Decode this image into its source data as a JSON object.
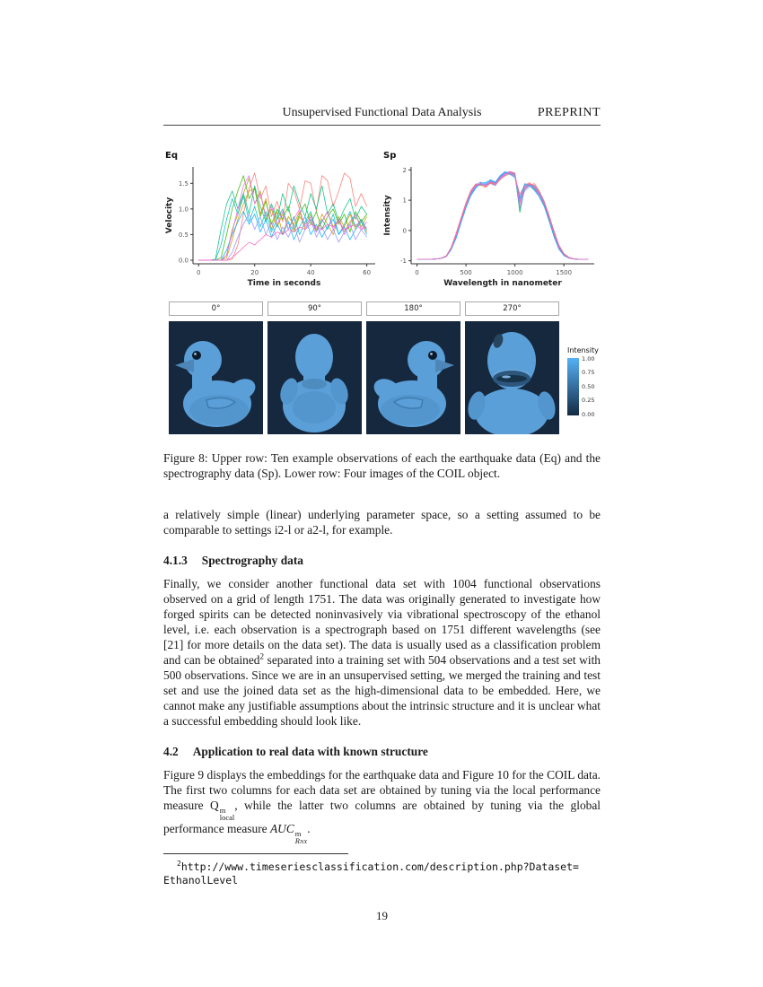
{
  "header": {
    "title": "Unsupervised Functional Data Analysis",
    "tag": "PREPRINT"
  },
  "page": {
    "number": "19"
  },
  "figure": {
    "caption": "Figure 8: Upper row: Ten example observations of each the earthquake data (Eq) and the spectrography data (Sp). Lower row: Four images of the COIL object."
  },
  "coil": {
    "labels": [
      "0°",
      "90°",
      "180°",
      "270°"
    ],
    "colorbar": {
      "title": "Intensity",
      "ticks": [
        "1.00",
        "0.75",
        "0.50",
        "0.25",
        "0.00"
      ],
      "top_color": "#56B1F7",
      "bottom_color": "#132B43"
    }
  },
  "chart_data": [
    {
      "type": "line",
      "title": "Eq",
      "xlabel": "Time in seconds",
      "ylabel": "Velocity",
      "xlim": [
        -2,
        63
      ],
      "ylim": [
        -0.07,
        1.82
      ],
      "x_start": 0,
      "x_step": 2,
      "x_ticks": [
        {
          "label": "0",
          "value": 0
        },
        {
          "label": "20",
          "value": 20
        },
        {
          "label": "40",
          "value": 40
        },
        {
          "label": "60",
          "value": 60
        }
      ],
      "y_ticks": [
        {
          "label": "0.0",
          "value": 0
        },
        {
          "label": "0.5",
          "value": 0.5
        },
        {
          "label": "1.0",
          "value": 1.0
        },
        {
          "label": "1.5",
          "value": 1.5
        }
      ],
      "grid": false,
      "legend": "none",
      "series": [
        {
          "name": "eq-1",
          "color": "#F8766D",
          "values": [
            0,
            0,
            0,
            0,
            0,
            0,
            0.02,
            0.3,
            0.9,
            1.4,
            1.7,
            1.2,
            1.45,
            0.85,
            1.15,
            0.75,
            1.5,
            1.35,
            1.0,
            1.55,
            1.5,
            0.95,
            1.65,
            1.55,
            1.05,
            1.35,
            1.7,
            1.6,
            1.05,
            1.3,
            1.05
          ]
        },
        {
          "name": "eq-2",
          "color": "#DB8E00",
          "values": [
            0,
            0,
            0,
            0,
            0,
            0.05,
            0.4,
            0.8,
            1.1,
            1.35,
            1.4,
            0.9,
            1.2,
            0.6,
            0.95,
            0.5,
            0.85,
            0.7,
            0.95,
            0.6,
            0.8,
            0.55,
            0.9,
            0.7,
            0.5,
            0.85,
            0.65,
            0.9,
            0.6,
            0.8,
            0.55
          ]
        },
        {
          "name": "eq-3",
          "color": "#A3A500",
          "values": [
            0,
            0,
            0,
            0,
            0,
            0.1,
            0.6,
            0.9,
            1.3,
            1.6,
            1.1,
            1.35,
            0.8,
            1.0,
            0.65,
            0.9,
            0.75,
            0.55,
            0.85,
            0.7,
            0.9,
            0.6,
            0.75,
            0.95,
            0.65,
            0.8,
            0.55,
            0.75,
            0.9,
            0.65,
            0.85
          ]
        },
        {
          "name": "eq-4",
          "color": "#39B600",
          "values": [
            0,
            0,
            0,
            0,
            0.05,
            0.5,
            1.0,
            1.35,
            1.65,
            1.2,
            1.4,
            0.85,
            1.15,
            0.7,
            1.0,
            0.8,
            1.05,
            0.6,
            0.9,
            1.1,
            0.7,
            0.95,
            0.6,
            0.85,
            1.0,
            0.7,
            0.9,
            0.55,
            0.95,
            0.75,
            0.9
          ]
        },
        {
          "name": "eq-5",
          "color": "#00BF7D",
          "values": [
            0,
            0,
            0,
            0.02,
            0.6,
            1.1,
            1.35,
            1.0,
            1.3,
            0.9,
            1.45,
            1.05,
            0.75,
            1.1,
            0.8,
            1.3,
            0.95,
            1.45,
            1.1,
            0.85,
            1.3,
            1.0,
            1.45,
            0.9,
            1.1,
            0.75,
            1.0,
            1.2,
            0.8,
            1.05,
            0.9
          ]
        },
        {
          "name": "eq-6",
          "color": "#00BFC4",
          "values": [
            0,
            0,
            0,
            0,
            0.3,
            0.8,
            1.2,
            0.9,
            1.25,
            0.75,
            1.05,
            0.65,
            0.95,
            0.55,
            0.8,
            1.0,
            0.6,
            0.85,
            0.5,
            0.75,
            0.95,
            0.55,
            0.8,
            0.6,
            0.9,
            0.5,
            0.7,
            0.95,
            0.65,
            0.8,
            0.6
          ]
        },
        {
          "name": "eq-7",
          "color": "#00B0F6",
          "values": [
            0,
            0,
            0,
            0,
            0,
            0.2,
            0.5,
            0.75,
            0.95,
            0.7,
            0.9,
            0.55,
            0.8,
            0.45,
            0.7,
            0.5,
            0.75,
            0.4,
            0.65,
            0.85,
            0.5,
            0.7,
            0.45,
            0.65,
            0.8,
            0.5,
            0.65,
            0.4,
            0.6,
            0.75,
            0.5
          ]
        },
        {
          "name": "eq-8",
          "color": "#9590FF",
          "values": [
            0,
            0,
            0,
            0,
            0,
            0,
            0.15,
            0.45,
            0.7,
            0.9,
            0.6,
            0.85,
            0.5,
            0.75,
            0.4,
            0.65,
            0.45,
            0.7,
            0.35,
            0.6,
            0.8,
            0.45,
            0.65,
            0.4,
            0.6,
            0.35,
            0.55,
            0.7,
            0.4,
            0.6,
            0.45
          ]
        },
        {
          "name": "eq-9",
          "color": "#E76BF3",
          "values": [
            0,
            0,
            0,
            0,
            0,
            0.1,
            0.55,
            1.0,
            1.45,
            1.65,
            1.1,
            1.3,
            0.85,
            1.05,
            0.7,
            0.95,
            0.6,
            0.8,
            1.0,
            0.65,
            0.85,
            0.55,
            0.75,
            0.95,
            0.6,
            0.8,
            0.5,
            0.7,
            0.9,
            0.6,
            0.75
          ]
        },
        {
          "name": "eq-10",
          "color": "#FF62BC",
          "values": [
            0,
            0,
            0,
            0,
            0,
            0,
            0.05,
            0.15,
            0.25,
            0.35,
            0.3,
            0.4,
            0.5,
            0.45,
            0.55,
            0.5,
            0.6,
            0.55,
            0.65,
            0.6,
            0.7,
            0.65,
            0.6,
            0.7,
            0.65,
            0.75,
            0.6,
            0.65,
            0.7,
            0.6,
            0.65
          ]
        }
      ]
    },
    {
      "type": "line",
      "title": "Sp",
      "xlabel": "Wavelength in nanometer",
      "ylabel": "Intensity",
      "xlim": [
        -60,
        1810
      ],
      "ylim": [
        -1.1,
        2.1
      ],
      "x_start": 0,
      "x_step": 50,
      "x_ticks": [
        {
          "label": "0",
          "value": 0
        },
        {
          "label": "500",
          "value": 500
        },
        {
          "label": "1000",
          "value": 1000
        },
        {
          "label": "1500",
          "value": 1500
        }
      ],
      "y_ticks": [
        {
          "label": "2",
          "value": 2
        },
        {
          "label": "1",
          "value": 1
        },
        {
          "label": "0",
          "value": 0
        },
        {
          "label": "-1",
          "value": -1
        }
      ],
      "grid": false,
      "legend": "none",
      "series": [
        {
          "name": "sp-1",
          "color": "#F8766D",
          "values": [
            -0.95,
            -0.95,
            -0.95,
            -0.95,
            -0.94,
            -0.92,
            -0.85,
            -0.6,
            -0.18,
            0.32,
            0.82,
            1.22,
            1.45,
            1.52,
            1.48,
            1.62,
            1.55,
            1.78,
            1.9,
            1.95,
            1.9,
            0.95,
            1.5,
            1.58,
            1.42,
            1.22,
            0.9,
            0.42,
            -0.1,
            -0.55,
            -0.8,
            -0.9,
            -0.94,
            -0.95,
            -0.95,
            -0.95
          ]
        },
        {
          "name": "sp-2",
          "color": "#F8766D",
          "values": [
            -0.95,
            -0.95,
            -0.95,
            -0.95,
            -0.94,
            -0.91,
            -0.83,
            -0.55,
            -0.1,
            0.4,
            0.9,
            1.28,
            1.5,
            1.55,
            1.45,
            1.58,
            1.5,
            1.7,
            1.85,
            1.92,
            1.85,
            0.75,
            1.35,
            1.5,
            1.55,
            1.3,
            0.95,
            0.5,
            -0.05,
            -0.5,
            -0.78,
            -0.89,
            -0.94,
            -0.95,
            -0.95,
            -0.95
          ]
        },
        {
          "name": "sp-3",
          "color": "#619CFF",
          "values": [
            -0.95,
            -0.95,
            -0.95,
            -0.95,
            -0.94,
            -0.92,
            -0.86,
            -0.62,
            -0.22,
            0.28,
            0.78,
            1.18,
            1.42,
            1.58,
            1.55,
            1.68,
            1.6,
            1.82,
            1.95,
            1.88,
            1.8,
            1.1,
            1.55,
            1.5,
            1.35,
            1.15,
            0.82,
            0.35,
            -0.18,
            -0.6,
            -0.82,
            -0.91,
            -0.94,
            -0.95,
            -0.95,
            -0.95
          ]
        },
        {
          "name": "sp-4",
          "color": "#00BA38",
          "values": [
            -0.95,
            -0.95,
            -0.95,
            -0.95,
            -0.94,
            -0.92,
            -0.85,
            -0.58,
            -0.15,
            0.35,
            0.85,
            1.25,
            1.48,
            1.5,
            1.52,
            1.6,
            1.52,
            1.75,
            1.88,
            1.93,
            1.88,
            0.6,
            1.4,
            1.52,
            1.38,
            1.18,
            0.85,
            0.38,
            -0.15,
            -0.58,
            -0.81,
            -0.9,
            -0.94,
            -0.95,
            -0.95,
            -0.95
          ]
        },
        {
          "name": "sp-5",
          "color": "#9590FF",
          "values": [
            -0.95,
            -0.95,
            -0.95,
            -0.95,
            -0.94,
            -0.92,
            -0.84,
            -0.57,
            -0.12,
            0.38,
            0.88,
            1.3,
            1.52,
            1.6,
            1.5,
            1.55,
            1.48,
            1.72,
            1.82,
            1.9,
            1.82,
            1.0,
            1.3,
            1.45,
            1.5,
            1.25,
            0.92,
            0.45,
            -0.08,
            -0.52,
            -0.79,
            -0.9,
            -0.94,
            -0.95,
            -0.95,
            -0.95
          ]
        },
        {
          "name": "sp-6",
          "color": "#E76BF3",
          "values": [
            -0.95,
            -0.95,
            -0.95,
            -0.95,
            -0.94,
            -0.92,
            -0.85,
            -0.59,
            -0.16,
            0.34,
            0.84,
            1.24,
            1.46,
            1.54,
            1.49,
            1.63,
            1.57,
            1.76,
            1.88,
            1.94,
            1.86,
            0.88,
            1.42,
            1.53,
            1.44,
            1.2,
            0.88,
            0.4,
            -0.12,
            -0.56,
            -0.8,
            -0.9,
            -0.94,
            -0.95,
            -0.95,
            -0.95
          ]
        },
        {
          "name": "sp-7",
          "color": "#F8766D",
          "values": [
            -0.95,
            -0.95,
            -0.95,
            -0.95,
            -0.94,
            -0.91,
            -0.84,
            -0.56,
            -0.08,
            0.42,
            0.92,
            1.32,
            1.54,
            1.5,
            1.42,
            1.56,
            1.52,
            1.68,
            1.8,
            1.88,
            1.78,
            1.2,
            1.48,
            1.55,
            1.48,
            1.28,
            0.95,
            0.48,
            -0.02,
            -0.48,
            -0.76,
            -0.88,
            -0.93,
            -0.95,
            -0.95,
            -0.95
          ]
        },
        {
          "name": "sp-8",
          "color": "#00B0F6",
          "values": [
            -0.95,
            -0.95,
            -0.95,
            -0.95,
            -0.94,
            -0.92,
            -0.86,
            -0.63,
            -0.25,
            0.25,
            0.75,
            1.15,
            1.4,
            1.56,
            1.58,
            1.66,
            1.58,
            1.8,
            1.92,
            1.85,
            1.75,
            1.05,
            1.52,
            1.48,
            1.32,
            1.1,
            0.78,
            0.3,
            -0.22,
            -0.62,
            -0.83,
            -0.91,
            -0.94,
            -0.95,
            -0.95,
            -0.95
          ]
        },
        {
          "name": "sp-9",
          "color": "#619CFF",
          "values": [
            -0.95,
            -0.95,
            -0.95,
            -0.95,
            -0.94,
            -0.92,
            -0.85,
            -0.6,
            -0.2,
            0.3,
            0.8,
            1.2,
            1.44,
            1.53,
            1.51,
            1.64,
            1.56,
            1.77,
            1.9,
            1.91,
            1.83,
            0.7,
            1.38,
            1.5,
            1.46,
            1.24,
            0.9,
            0.42,
            -0.1,
            -0.54,
            -0.79,
            -0.9,
            -0.94,
            -0.95,
            -0.95,
            -0.95
          ]
        },
        {
          "name": "sp-10",
          "color": "#FF62BC",
          "values": [
            -0.95,
            -0.95,
            -0.95,
            -0.95,
            -0.94,
            -0.92,
            -0.85,
            -0.58,
            -0.14,
            0.36,
            0.86,
            1.26,
            1.49,
            1.55,
            1.47,
            1.6,
            1.53,
            1.74,
            1.86,
            1.92,
            1.87,
            0.92,
            1.44,
            1.54,
            1.4,
            1.18,
            0.86,
            0.4,
            -0.13,
            -0.57,
            -0.8,
            -0.9,
            -0.94,
            -0.95,
            -0.95,
            -0.95
          ]
        }
      ]
    }
  ],
  "sections": {
    "para_intro": "a relatively simple (linear) underlying parameter space, so a setting assumed to be comparable to settings i2-l or a2-l, for example.",
    "h413_num": "4.1.3",
    "h413_title": "Spectrography data",
    "para_spectro_a": "Finally, we consider another functional data set with 1004 functional observations observed on a grid of length 1751. The data was originally generated to investigate how forged spirits can be detected noninvasively via vibrational spectroscopy of the ethanol level, i.e. each observation is a spectrograph based on 1751 different wavelengths (see [21] for more details on the data set). The data is usually used as a classification problem and can be obtained",
    "fn_mark": "2",
    "para_spectro_b": " separated into a training set with 504 observations and a test set with 500 observations. Since we are in an unsupervised setting, we merged the training and test set and use the joined data set as the high-dimensional data to be embedded. Here, we cannot make any justifiable assumptions about the intrinsic structure and it is unclear what a successful embedding should look like.",
    "h42_num": "4.2",
    "h42_title": "Application to real data with known structure",
    "para42_a": "Figure 9 displays the embeddings for the earthquake data and Figure 10 for the COIL data. The first two columns for each data set are obtained by tuning via the local performance measure Q",
    "q_sup": "m",
    "q_sub": "local",
    "para42_b": ", while the latter two columns are obtained by tuning via the global performance measure ",
    "auc": "AUC",
    "auc_sup": "m",
    "auc_sub": "R",
    "auc_subsub": "NX",
    "para42_end": "."
  },
  "footnote": {
    "mark": "2",
    "url_line1": "http://www.timeseriesclassification.com/description.php?Dataset=",
    "url_line2": "EthanolLevel"
  }
}
